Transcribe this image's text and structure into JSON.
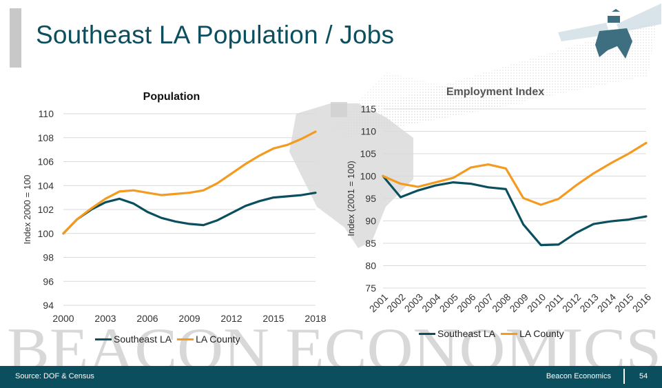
{
  "header": {
    "title": "Southeast LA Population / Jobs"
  },
  "watermark": {
    "text": "BEACON ECONOMICS"
  },
  "footer": {
    "source": "Source: DOF & Census",
    "brand": "Beacon Economics",
    "page": "54"
  },
  "colors": {
    "teal": "#0b4f5f",
    "orange": "#f39a1f",
    "grid": "#d9d9d9"
  },
  "chart_data": [
    {
      "type": "line",
      "title": "Population",
      "xlabel": "",
      "ylabel": "Index 2000 = 100",
      "xlim": [
        2000,
        2018
      ],
      "ylim": [
        94,
        110
      ],
      "x": [
        2000,
        2001,
        2002,
        2003,
        2004,
        2005,
        2006,
        2007,
        2008,
        2009,
        2010,
        2011,
        2012,
        2013,
        2014,
        2015,
        2016,
        2017,
        2018
      ],
      "x_ticks": [
        "2000",
        "2003",
        "2006",
        "2009",
        "2012",
        "2015",
        "2018"
      ],
      "y_ticks": [
        "94",
        "96",
        "98",
        "100",
        "102",
        "104",
        "106",
        "108",
        "110"
      ],
      "series": [
        {
          "name": "Southeast LA",
          "color": "#0b4f5f",
          "values": [
            100.0,
            101.2,
            102.0,
            102.6,
            102.9,
            102.5,
            101.8,
            101.3,
            101.0,
            100.8,
            100.7,
            101.1,
            101.7,
            102.3,
            102.7,
            103.0,
            103.1,
            103.2,
            103.4
          ]
        },
        {
          "name": "LA County",
          "color": "#f39a1f",
          "values": [
            100.0,
            101.2,
            102.1,
            102.9,
            103.5,
            103.6,
            103.4,
            103.2,
            103.3,
            103.4,
            103.6,
            104.2,
            105.0,
            105.8,
            106.5,
            107.1,
            107.4,
            107.9,
            108.5
          ]
        }
      ],
      "legend": "bottom"
    },
    {
      "type": "line",
      "title": "Employment Index",
      "xlabel": "",
      "ylabel": "Index (2001 = 100)",
      "xlim": [
        2001,
        2016
      ],
      "ylim": [
        75,
        115
      ],
      "x": [
        2001,
        2002,
        2003,
        2004,
        2005,
        2006,
        2007,
        2008,
        2009,
        2010,
        2011,
        2012,
        2013,
        2014,
        2015,
        2016
      ],
      "x_ticks": [
        "2001",
        "2002",
        "2003",
        "2004",
        "2005",
        "2006",
        "2007",
        "2008",
        "2009",
        "2010",
        "2011",
        "2012",
        "2013",
        "2014",
        "2015",
        "2016"
      ],
      "y_ticks": [
        "75",
        "80",
        "85",
        "90",
        "95",
        "100",
        "105",
        "110",
        "115"
      ],
      "series": [
        {
          "name": "Southeast LA",
          "color": "#0b4f5f",
          "values": [
            100.0,
            95.3,
            96.8,
            97.9,
            98.6,
            98.3,
            97.5,
            97.1,
            89.2,
            84.6,
            84.7,
            87.3,
            89.3,
            89.9,
            90.3,
            91.0
          ]
        },
        {
          "name": "LA County",
          "color": "#f39a1f",
          "values": [
            100.0,
            98.3,
            97.6,
            98.6,
            99.6,
            101.9,
            102.6,
            101.7,
            95.1,
            93.6,
            94.9,
            97.9,
            100.6,
            102.9,
            105.0,
            107.4
          ]
        }
      ],
      "legend": "bottom"
    }
  ]
}
